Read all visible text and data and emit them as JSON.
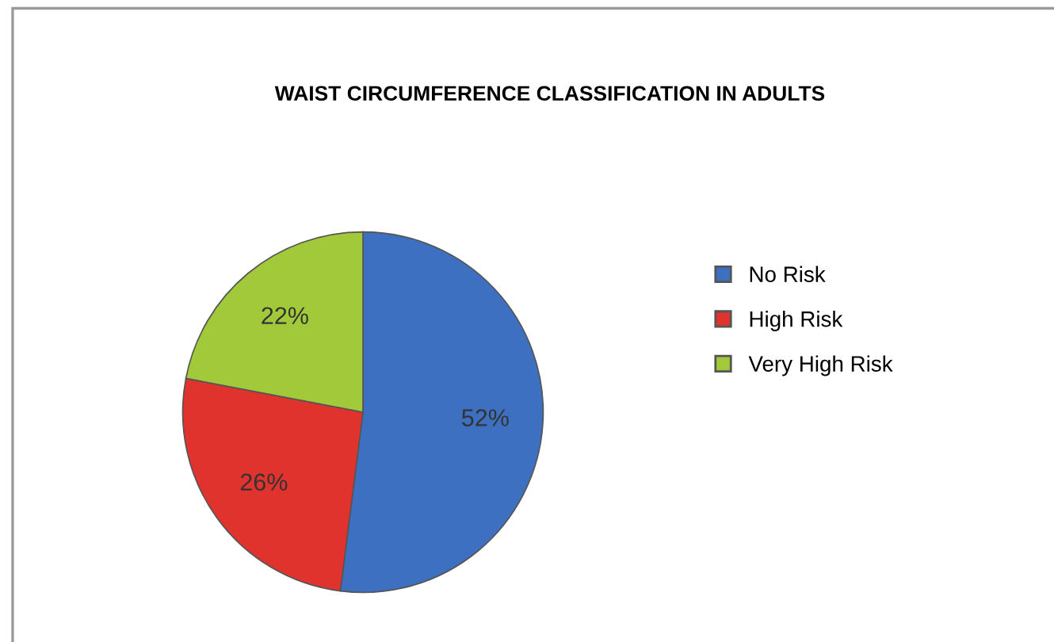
{
  "chart_data": {
    "type": "pie",
    "title": "WAIST CIRCUMFERENCE CLASSIFICATION IN ADULTS",
    "categories": [
      "No Risk",
      "High Risk",
      "Very High Risk"
    ],
    "values": [
      52,
      26,
      22
    ],
    "value_labels": [
      "52%",
      "26%",
      "22%"
    ],
    "colors": [
      "#3d70c0",
      "#e0332e",
      "#a2c93a"
    ],
    "legend": "right"
  }
}
